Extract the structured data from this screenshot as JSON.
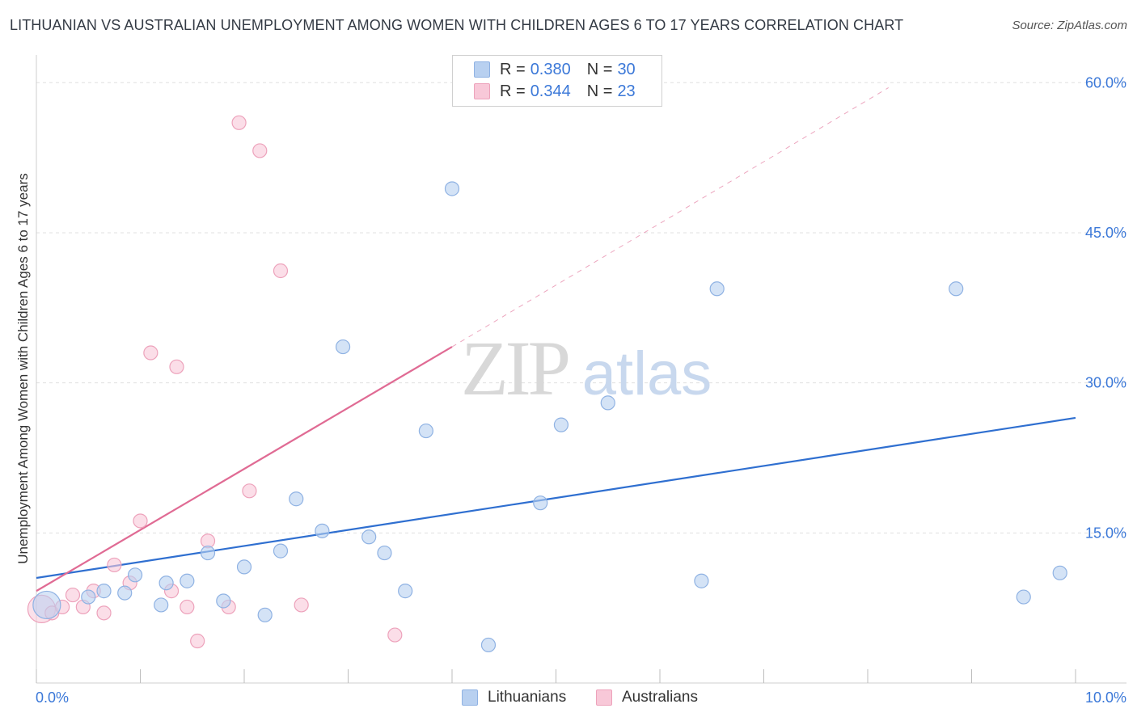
{
  "title": "LITHUANIAN VS AUSTRALIAN UNEMPLOYMENT AMONG WOMEN WITH CHILDREN AGES 6 TO 17 YEARS CORRELATION CHART",
  "source": "Source: ZipAtlas.com",
  "watermark": {
    "zip": "ZIP",
    "atlas": "atlas"
  },
  "colors": {
    "lithuanians_fill": "#b8d0f0",
    "lithuanians_stroke": "#8fb2e3",
    "lithuanians_line": "#2f6fd0",
    "australians_fill": "#f8c8d8",
    "australians_stroke": "#eda2bb",
    "australians_line": "#e06b94",
    "axis_text": "#3b78d8",
    "grid": "#e0e0e0"
  },
  "legend": {
    "rows": [
      {
        "r_label": "R =",
        "r_value": "0.380",
        "n_label": "N =",
        "n_value": "30"
      },
      {
        "r_label": "R =",
        "r_value": "0.344",
        "n_label": "N =",
        "n_value": "23"
      }
    ]
  },
  "chart_data": {
    "type": "scatter",
    "title": "LITHUANIAN VS AUSTRALIAN UNEMPLOYMENT AMONG WOMEN WITH CHILDREN AGES 6 TO 17 YEARS CORRELATION CHART",
    "xlabel": "",
    "ylabel": "Unemployment Among Women with Children Ages 6 to 17 years",
    "xlim": [
      0,
      10
    ],
    "ylim": [
      0,
      60
    ],
    "x_tick_labels": [
      "0.0%",
      "10.0%"
    ],
    "y_tick_labels": [
      "15.0%",
      "30.0%",
      "45.0%",
      "60.0%"
    ],
    "y_ticks": [
      15,
      30,
      45,
      60
    ],
    "grid": true,
    "legend_position": "top-center",
    "series": [
      {
        "name": "Lithuanians",
        "r": 0.38,
        "n": 30,
        "trend": {
          "x0": 0.0,
          "y0": 10.5,
          "x1": 10.0,
          "y1": 26.5
        },
        "points": [
          {
            "x": 0.1,
            "y": 7.8,
            "big": true
          },
          {
            "x": 0.5,
            "y": 8.6
          },
          {
            "x": 0.65,
            "y": 9.2
          },
          {
            "x": 0.85,
            "y": 9.0
          },
          {
            "x": 0.95,
            "y": 10.8
          },
          {
            "x": 1.2,
            "y": 7.8
          },
          {
            "x": 1.25,
            "y": 10.0
          },
          {
            "x": 1.45,
            "y": 10.2
          },
          {
            "x": 1.65,
            "y": 13.0
          },
          {
            "x": 1.8,
            "y": 8.2
          },
          {
            "x": 2.0,
            "y": 11.6
          },
          {
            "x": 2.2,
            "y": 6.8
          },
          {
            "x": 2.35,
            "y": 13.2
          },
          {
            "x": 2.5,
            "y": 18.4
          },
          {
            "x": 2.75,
            "y": 15.2
          },
          {
            "x": 2.95,
            "y": 33.6
          },
          {
            "x": 3.2,
            "y": 14.6
          },
          {
            "x": 3.35,
            "y": 13.0
          },
          {
            "x": 3.55,
            "y": 9.2
          },
          {
            "x": 3.75,
            "y": 25.2
          },
          {
            "x": 4.0,
            "y": 49.4
          },
          {
            "x": 4.35,
            "y": 3.8
          },
          {
            "x": 4.85,
            "y": 18.0
          },
          {
            "x": 5.05,
            "y": 25.8
          },
          {
            "x": 5.5,
            "y": 28.0
          },
          {
            "x": 6.4,
            "y": 10.2
          },
          {
            "x": 6.55,
            "y": 39.4
          },
          {
            "x": 8.85,
            "y": 39.4
          },
          {
            "x": 9.5,
            "y": 8.6
          },
          {
            "x": 9.85,
            "y": 11.0
          }
        ]
      },
      {
        "name": "Australians",
        "r": 0.344,
        "n": 23,
        "trend": {
          "x0": 0.0,
          "y0": 9.2,
          "x1": 4.0,
          "y1": 33.6
        },
        "trend_extended": {
          "x0": 4.0,
          "y0": 33.6,
          "x1": 8.2,
          "y1": 59.5
        },
        "points": [
          {
            "x": 0.05,
            "y": 7.4,
            "big": true
          },
          {
            "x": 0.15,
            "y": 7.0
          },
          {
            "x": 0.25,
            "y": 7.6
          },
          {
            "x": 0.35,
            "y": 8.8
          },
          {
            "x": 0.45,
            "y": 7.6
          },
          {
            "x": 0.55,
            "y": 9.2
          },
          {
            "x": 0.65,
            "y": 7.0
          },
          {
            "x": 0.75,
            "y": 11.8
          },
          {
            "x": 0.9,
            "y": 10.0
          },
          {
            "x": 1.0,
            "y": 16.2
          },
          {
            "x": 1.1,
            "y": 33.0
          },
          {
            "x": 1.3,
            "y": 9.2
          },
          {
            "x": 1.35,
            "y": 31.6
          },
          {
            "x": 1.45,
            "y": 7.6
          },
          {
            "x": 1.55,
            "y": 4.2
          },
          {
            "x": 1.65,
            "y": 14.2
          },
          {
            "x": 1.85,
            "y": 7.6
          },
          {
            "x": 1.95,
            "y": 56.0
          },
          {
            "x": 2.05,
            "y": 19.2
          },
          {
            "x": 2.15,
            "y": 53.2
          },
          {
            "x": 2.35,
            "y": 41.2
          },
          {
            "x": 2.55,
            "y": 7.8
          },
          {
            "x": 3.45,
            "y": 4.8
          }
        ]
      }
    ]
  }
}
